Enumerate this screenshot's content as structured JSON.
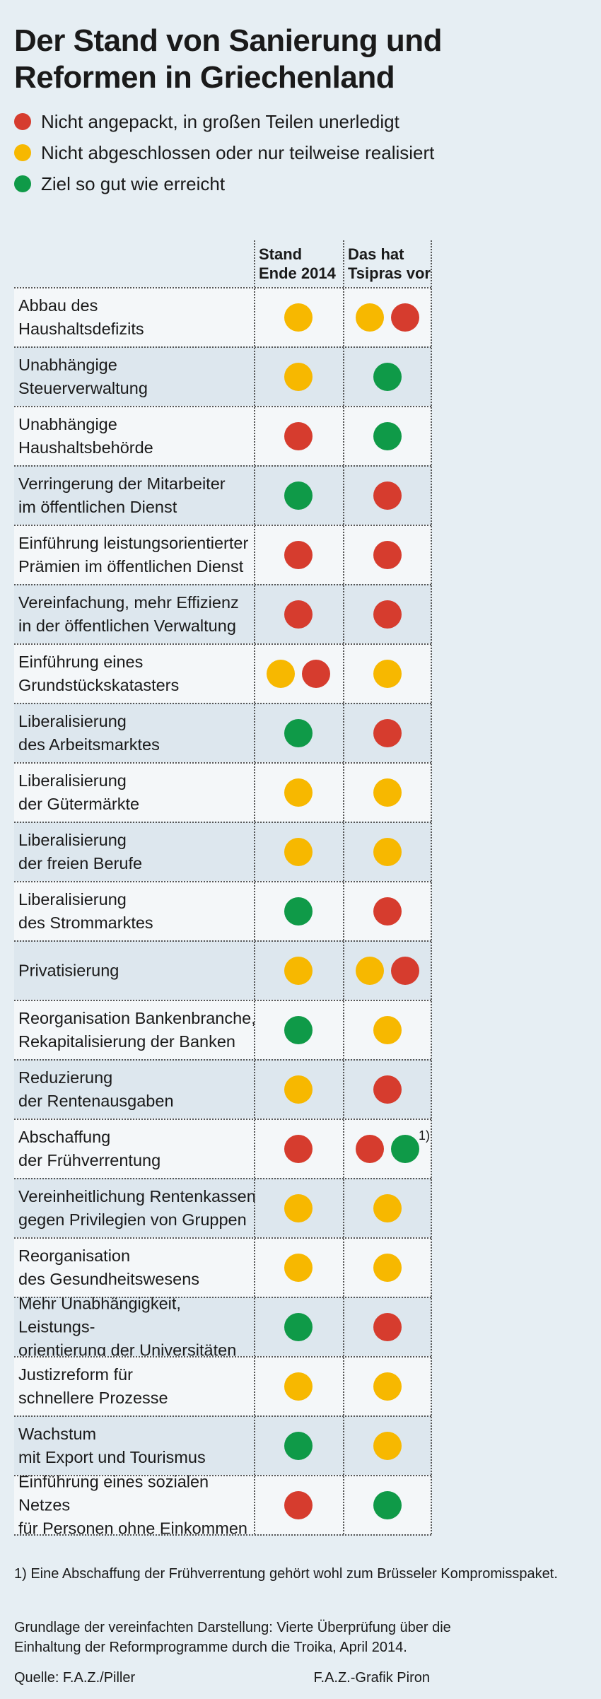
{
  "title": "Der Stand von Sanierung und Reformen in Griechenland",
  "colors": {
    "red": "#d63c2e",
    "yellow": "#f7b800",
    "green": "#0f9a48"
  },
  "legend": [
    {
      "status": "red",
      "label": "Nicht angepackt, in großen Teilen unerledigt"
    },
    {
      "status": "yellow",
      "label": "Nicht abgeschlossen oder nur teilweise realisiert"
    },
    {
      "status": "green",
      "label": "Ziel so gut wie erreicht"
    }
  ],
  "columns": [
    {
      "line1": "Stand",
      "line2": "Ende 2014"
    },
    {
      "line1": "Das hat",
      "line2": "Tsipras vor"
    }
  ],
  "chart_data": {
    "type": "table",
    "rows": [
      {
        "label": [
          "Abbau des",
          "Haushaltsdefizits"
        ],
        "stand": [
          "yellow"
        ],
        "tsipras": [
          "yellow",
          "red"
        ]
      },
      {
        "label": [
          "Unabhängige",
          "Steuerverwaltung"
        ],
        "stand": [
          "yellow"
        ],
        "tsipras": [
          "green"
        ]
      },
      {
        "label": [
          "Unabhängige",
          "Haushaltsbehörde"
        ],
        "stand": [
          "red"
        ],
        "tsipras": [
          "green"
        ]
      },
      {
        "label": [
          "Verringerung der Mitarbeiter",
          "im öffentlichen Dienst"
        ],
        "stand": [
          "green"
        ],
        "tsipras": [
          "red"
        ]
      },
      {
        "label": [
          "Einführung leistungsorientierter",
          "Prämien im öffentlichen Dienst"
        ],
        "stand": [
          "red"
        ],
        "tsipras": [
          "red"
        ]
      },
      {
        "label": [
          "Vereinfachung, mehr Effizienz",
          "in der öffentlichen Verwaltung"
        ],
        "stand": [
          "red"
        ],
        "tsipras": [
          "red"
        ]
      },
      {
        "label": [
          "Einführung eines",
          "Grundstückskatasters"
        ],
        "stand": [
          "yellow",
          "red"
        ],
        "tsipras": [
          "yellow"
        ]
      },
      {
        "label": [
          "Liberalisierung",
          "des Arbeitsmarktes"
        ],
        "stand": [
          "green"
        ],
        "tsipras": [
          "red"
        ]
      },
      {
        "label": [
          "Liberalisierung",
          "der Gütermärkte"
        ],
        "stand": [
          "yellow"
        ],
        "tsipras": [
          "yellow"
        ]
      },
      {
        "label": [
          "Liberalisierung",
          "der freien Berufe"
        ],
        "stand": [
          "yellow"
        ],
        "tsipras": [
          "yellow"
        ]
      },
      {
        "label": [
          "Liberalisierung",
          "des Strommarktes"
        ],
        "stand": [
          "green"
        ],
        "tsipras": [
          "red"
        ]
      },
      {
        "label": [
          "Privatisierung"
        ],
        "stand": [
          "yellow"
        ],
        "tsipras": [
          "yellow",
          "red"
        ]
      },
      {
        "label": [
          "Reorganisation Bankenbranche,",
          "Rekapitalisierung der Banken"
        ],
        "stand": [
          "green"
        ],
        "tsipras": [
          "yellow"
        ]
      },
      {
        "label": [
          "Reduzierung",
          "der Rentenausgaben"
        ],
        "stand": [
          "yellow"
        ],
        "tsipras": [
          "red"
        ]
      },
      {
        "label": [
          "Abschaffung",
          "der Frühverrentung"
        ],
        "stand": [
          "red"
        ],
        "tsipras": [
          "red",
          "green"
        ],
        "footnote_mark": "1)"
      },
      {
        "label": [
          "Vereinheitlichung Rentenkassen",
          "gegen Privilegien von Gruppen"
        ],
        "stand": [
          "yellow"
        ],
        "tsipras": [
          "yellow"
        ]
      },
      {
        "label": [
          "Reorganisation",
          "des Gesundheitswesens"
        ],
        "stand": [
          "yellow"
        ],
        "tsipras": [
          "yellow"
        ]
      },
      {
        "label": [
          "Mehr Unabhängigkeit, Leistungs-",
          "orientierung der Universitäten"
        ],
        "stand": [
          "green"
        ],
        "tsipras": [
          "red"
        ]
      },
      {
        "label": [
          "Justizreform für",
          "schnellere Prozesse"
        ],
        "stand": [
          "yellow"
        ],
        "tsipras": [
          "yellow"
        ]
      },
      {
        "label": [
          "Wachstum",
          "mit Export und Tourismus"
        ],
        "stand": [
          "green"
        ],
        "tsipras": [
          "yellow"
        ]
      },
      {
        "label": [
          "Einführung eines sozialen Netzes",
          "für Personen ohne Einkommen"
        ],
        "stand": [
          "red"
        ],
        "tsipras": [
          "green"
        ]
      }
    ]
  },
  "footnote": "1) Eine Abschaffung der Frühverrentung gehört wohl zum Brüsseler Kompromisspaket.",
  "basis": "Grundlage der vereinfachten Darstellung: Vierte Überprüfung über die Einhaltung der Reformprogramme durch die Troika, April 2014.",
  "source": "Quelle: F.A.Z./Piller",
  "credit": "F.A.Z.-Grafik Piron"
}
